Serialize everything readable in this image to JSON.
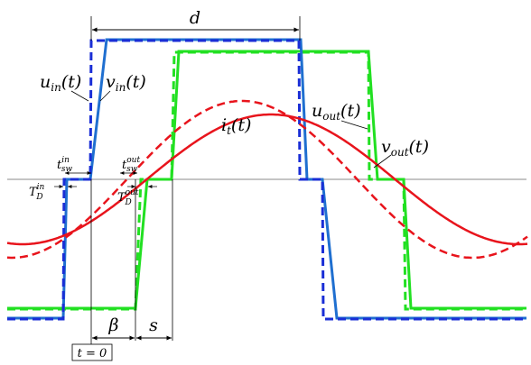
{
  "labels": {
    "d": "d",
    "u_in": "u",
    "u_in_sub": "in",
    "v_in": "v",
    "v_in_sub": "in",
    "u_out": "u",
    "u_out_sub": "out",
    "v_out": "v",
    "v_out_sub": "out",
    "i_t": "i",
    "i_t_sub": "t",
    "arg": "(t)",
    "t_sw": "t",
    "t_sw_sub": "sw",
    "t_sw_in_sup": "in",
    "t_sw_out_sup": "out",
    "T_D": "T",
    "T_D_sub": "D",
    "T_D_in_sup": "in",
    "T_D_out_sup": "out",
    "beta": "β",
    "s": "s",
    "t0": "t = 0"
  },
  "colors": {
    "input_voltage": "#1f6fd0",
    "input_voltage_dashed": "#1a2ed6",
    "output_voltage": "#22e022",
    "current": "#e8141c",
    "axis": "#888888",
    "annotation": "#000000"
  }
}
